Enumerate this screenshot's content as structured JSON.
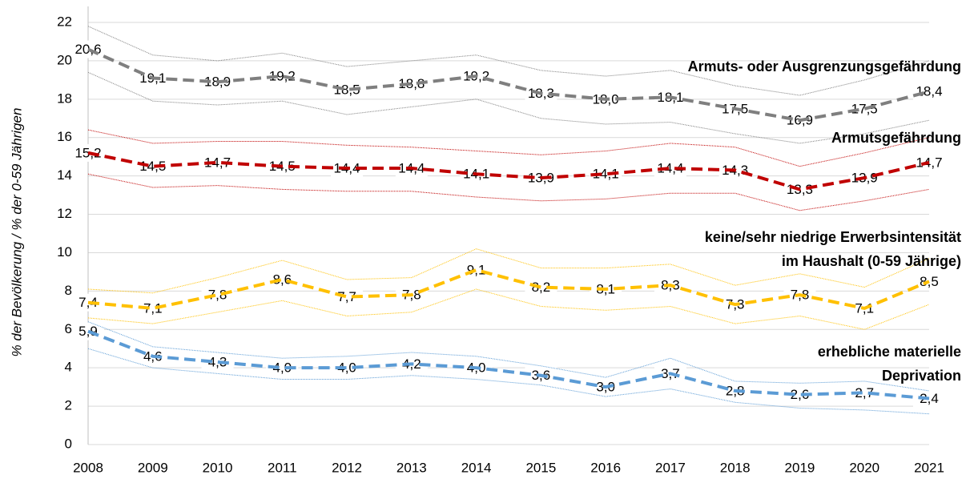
{
  "chart_data": {
    "type": "line",
    "y_axis_label": "% der Bevölkerung / % der 0-59 Jährigen",
    "categories": [
      "2008",
      "2009",
      "2010",
      "2011",
      "2012",
      "2013",
      "2014",
      "2015",
      "2016",
      "2017",
      "2018",
      "2019",
      "2020",
      "2021"
    ],
    "ylim": [
      0,
      22
    ],
    "yticks": [
      0,
      2,
      4,
      6,
      8,
      10,
      12,
      14,
      16,
      18,
      20,
      22
    ],
    "grid": true,
    "series": [
      {
        "name": "Armuts- oder Ausgrenzungsgefährdung",
        "color": "#7f7f7f",
        "values": [
          20.6,
          19.1,
          18.9,
          19.2,
          18.5,
          18.8,
          19.2,
          18.3,
          18.0,
          18.1,
          17.5,
          16.9,
          17.5,
          18.4
        ],
        "value_labels": [
          "20,6",
          "19,1",
          "18,9",
          "19,2",
          "18,5",
          "18,8",
          "19,2",
          "18,3",
          "18,0",
          "18,1",
          "17,5",
          "16,9",
          "17,5",
          "18,4"
        ],
        "upper": [
          21.8,
          20.3,
          20.0,
          20.4,
          19.7,
          20.0,
          20.3,
          19.5,
          19.2,
          19.5,
          18.7,
          18.2,
          19.0,
          20.0
        ],
        "lower": [
          19.4,
          17.9,
          17.7,
          17.9,
          17.2,
          17.6,
          18.0,
          17.0,
          16.7,
          16.8,
          16.2,
          15.7,
          16.2,
          16.9
        ]
      },
      {
        "name": "Armutsgefährdung",
        "color": "#c00000",
        "values": [
          15.2,
          14.5,
          14.7,
          14.5,
          14.4,
          14.4,
          14.1,
          13.9,
          14.1,
          14.4,
          14.3,
          13.3,
          13.9,
          14.7
        ],
        "value_labels": [
          "15,2",
          "14,5",
          "14,7",
          "14,5",
          "14,4",
          "14,4",
          "14,1",
          "13,9",
          "14,1",
          "14,4",
          "14,3",
          "13,3",
          "13,9",
          "14,7"
        ],
        "upper": [
          16.4,
          15.7,
          15.8,
          15.8,
          15.6,
          15.5,
          15.3,
          15.1,
          15.3,
          15.7,
          15.5,
          14.5,
          15.2,
          16.0
        ],
        "lower": [
          14.1,
          13.4,
          13.5,
          13.3,
          13.2,
          13.2,
          12.9,
          12.7,
          12.8,
          13.1,
          13.1,
          12.2,
          12.7,
          13.3
        ]
      },
      {
        "name": [
          "keine/sehr niedrige Erwerbsintensität",
          "im Haushalt (0-59 Jährige)"
        ],
        "color": "#ffc000",
        "values": [
          7.4,
          7.1,
          7.8,
          8.6,
          7.7,
          7.8,
          9.1,
          8.2,
          8.1,
          8.3,
          7.3,
          7.8,
          7.1,
          8.5
        ],
        "value_labels": [
          "7,4",
          "7,1",
          "7,8",
          "8,6",
          "7,7",
          "7,8",
          "9,1",
          "8,2",
          "8,1",
          "8,3",
          "7,3",
          "7,8",
          "7,1",
          "8,5"
        ],
        "upper": [
          8.1,
          7.9,
          8.7,
          9.6,
          8.6,
          8.7,
          10.2,
          9.2,
          9.2,
          9.4,
          8.3,
          8.9,
          8.2,
          9.7
        ],
        "lower": [
          6.6,
          6.3,
          6.9,
          7.5,
          6.7,
          6.9,
          8.1,
          7.2,
          7.0,
          7.2,
          6.3,
          6.7,
          6.0,
          7.3
        ]
      },
      {
        "name": [
          "erhebliche materielle",
          "Deprivation"
        ],
        "color": "#5b9bd5",
        "values": [
          5.9,
          4.6,
          4.3,
          4.0,
          4.0,
          4.2,
          4.0,
          3.6,
          3.0,
          3.7,
          2.8,
          2.6,
          2.7,
          2.4
        ],
        "value_labels": [
          "5,9",
          "4,6",
          "4,3",
          "4,0",
          "4,0",
          "4,2",
          "4,0",
          "3,6",
          "3,0",
          "3,7",
          "2,8",
          "2,6",
          "2,7",
          "2,4"
        ],
        "upper": [
          6.4,
          5.1,
          4.8,
          4.5,
          4.6,
          4.8,
          4.6,
          4.1,
          3.5,
          4.5,
          3.3,
          3.2,
          3.3,
          2.8
        ],
        "lower": [
          5.0,
          4.0,
          3.7,
          3.4,
          3.4,
          3.6,
          3.4,
          3.1,
          2.5,
          2.9,
          2.2,
          1.9,
          1.8,
          1.6
        ]
      }
    ]
  }
}
